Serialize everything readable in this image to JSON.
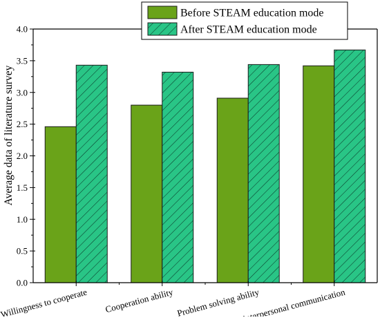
{
  "chart_data": {
    "type": "bar",
    "title": "",
    "xlabel": "",
    "ylabel": "Average data of literature survey",
    "ylim": [
      0,
      4.0
    ],
    "yticks": [
      "0.0",
      "0.5",
      "1.0",
      "1.5",
      "2.0",
      "2.5",
      "3.0",
      "3.5",
      "4.0"
    ],
    "categories": [
      "Willingness to cooperate",
      "Cooperation ability",
      "Problem solving ability",
      "interpersonal communication"
    ],
    "series": [
      {
        "name": "Before STEAM education mode",
        "values": [
          2.46,
          2.8,
          2.91,
          3.42
        ],
        "color": "#6aa319",
        "pattern": "solid"
      },
      {
        "name": "After STEAM education mode",
        "values": [
          3.43,
          3.32,
          3.44,
          3.67
        ],
        "color": "#29c586",
        "pattern": "diagonal-hatch"
      }
    ],
    "legend_position": "top-right",
    "grid": false
  }
}
